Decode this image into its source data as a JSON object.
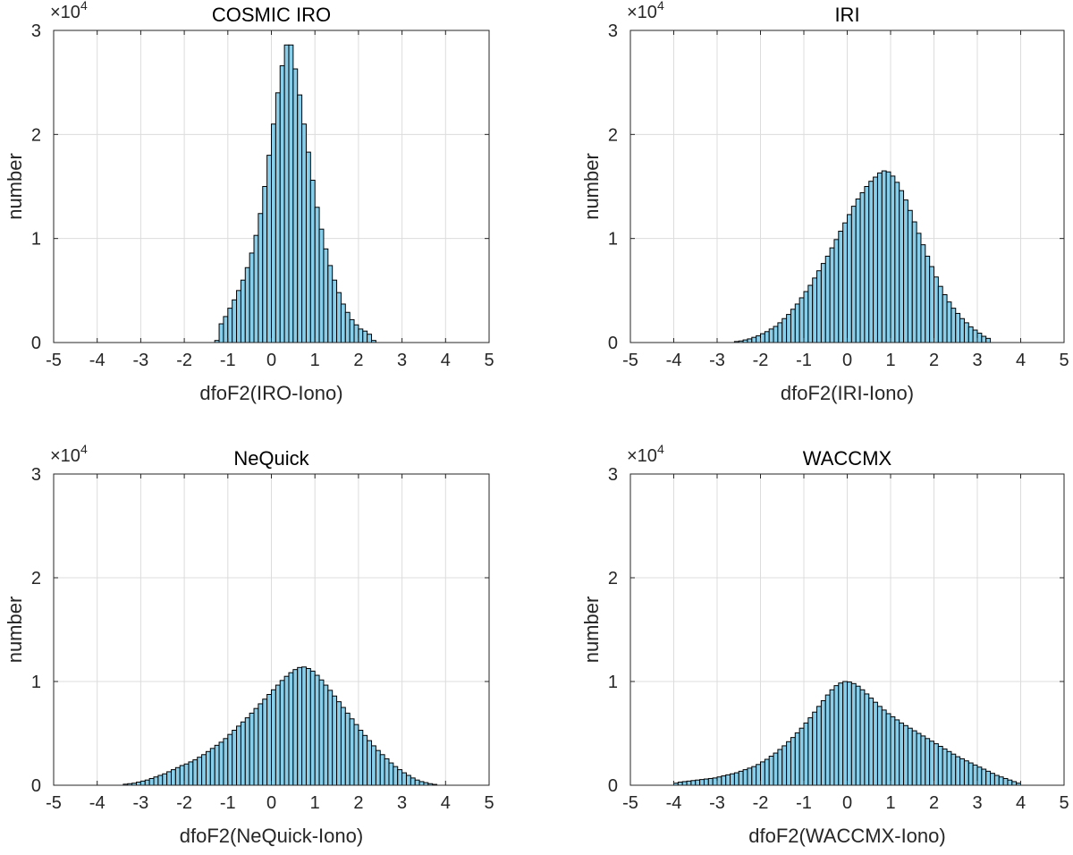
{
  "figure": {
    "bar_color": "#87CEEB",
    "edge_color": "#000000",
    "grid_color": "#DCDCDC"
  },
  "chart_data": [
    {
      "type": "bar",
      "title": "COSMIC IRO",
      "xlabel": "dfoF2(IRO-Iono)",
      "ylabel": "number",
      "xlim": [
        -5,
        5
      ],
      "ylim": [
        0,
        30000
      ],
      "xticks": [
        -5,
        -4,
        -3,
        -2,
        -1,
        0,
        1,
        2,
        3,
        4,
        5
      ],
      "yticks": [
        0,
        1,
        2,
        3
      ],
      "y_multiplier": "×10",
      "y_exponent": "4",
      "grid": true,
      "bin_width": 0.1,
      "x_start": -1.3,
      "values": [
        200,
        1800,
        2500,
        3300,
        4100,
        5000,
        6000,
        7200,
        8600,
        10300,
        12400,
        15000,
        18000,
        21000,
        24000,
        26600,
        28600,
        28600,
        26300,
        23800,
        21000,
        18300,
        15600,
        13000,
        10900,
        9000,
        7400,
        6000,
        4800,
        3700,
        2900,
        2200,
        1700,
        1300,
        1100,
        800,
        200
      ]
    },
    {
      "type": "bar",
      "title": "IRI",
      "xlabel": "dfoF2(IRI-Iono)",
      "ylabel": "number",
      "xlim": [
        -5,
        5
      ],
      "ylim": [
        0,
        30000
      ],
      "xticks": [
        -5,
        -4,
        -3,
        -2,
        -1,
        0,
        1,
        2,
        3,
        4,
        5
      ],
      "yticks": [
        0,
        1,
        2,
        3
      ],
      "y_multiplier": "×10",
      "y_exponent": "4",
      "grid": true,
      "bin_width": 0.1,
      "x_start": -2.6,
      "values": [
        100,
        150,
        250,
        350,
        500,
        650,
        850,
        1050,
        1300,
        1550,
        1900,
        2300,
        2700,
        3200,
        3700,
        4300,
        4900,
        5500,
        6200,
        6900,
        7600,
        8300,
        9100,
        9900,
        10700,
        11500,
        12300,
        13100,
        13800,
        14400,
        15000,
        15500,
        15900,
        16300,
        16500,
        16400,
        16000,
        15400,
        14600,
        13700,
        12700,
        11600,
        10500,
        9400,
        8300,
        7300,
        6300,
        5400,
        4600,
        3900,
        3300,
        2800,
        2300,
        1900,
        1500,
        1200,
        900,
        600,
        400
      ]
    },
    {
      "type": "bar",
      "title": "NeQuick",
      "xlabel": "dfoF2(NeQuick-Iono)",
      "ylabel": "number",
      "xlim": [
        -5,
        5
      ],
      "ylim": [
        0,
        30000
      ],
      "xticks": [
        -5,
        -4,
        -3,
        -2,
        -1,
        0,
        1,
        2,
        3,
        4,
        5
      ],
      "yticks": [
        0,
        1,
        2,
        3
      ],
      "y_multiplier": "×10",
      "y_exponent": "4",
      "grid": true,
      "bin_width": 0.1,
      "x_start": -3.4,
      "values": [
        100,
        150,
        200,
        300,
        400,
        500,
        650,
        800,
        950,
        1100,
        1300,
        1500,
        1700,
        1900,
        2050,
        2250,
        2450,
        2700,
        2950,
        3250,
        3550,
        3850,
        4150,
        4500,
        4900,
        5300,
        5700,
        6100,
        6500,
        6950,
        7400,
        7850,
        8300,
        8750,
        9200,
        9650,
        10100,
        10500,
        10850,
        11150,
        11350,
        11400,
        11250,
        11000,
        10600,
        10150,
        9650,
        9150,
        8600,
        8050,
        7500,
        6950,
        6400,
        5850,
        5300,
        4800,
        4300,
        3800,
        3350,
        2950,
        2550,
        2150,
        1800,
        1500,
        1200,
        950,
        700,
        500,
        350,
        250,
        150,
        80
      ]
    },
    {
      "type": "bar",
      "title": "WACCMX",
      "xlabel": "dfoF2(WACCMX-Iono)",
      "ylabel": "number",
      "xlim": [
        -5,
        5
      ],
      "ylim": [
        0,
        30000
      ],
      "xticks": [
        -5,
        -4,
        -3,
        -2,
        -1,
        0,
        1,
        2,
        3,
        4,
        5
      ],
      "yticks": [
        0,
        1,
        2,
        3
      ],
      "y_multiplier": "×10",
      "y_exponent": "4",
      "grid": true,
      "bin_width": 0.1,
      "x_start": -4.0,
      "values": [
        200,
        300,
        350,
        400,
        450,
        500,
        550,
        600,
        650,
        700,
        800,
        900,
        1000,
        1100,
        1200,
        1350,
        1500,
        1650,
        1800,
        2000,
        2250,
        2500,
        2800,
        3100,
        3450,
        3800,
        4200,
        4600,
        5050,
        5500,
        6000,
        6500,
        7050,
        7600,
        8150,
        8700,
        9200,
        9600,
        9850,
        10000,
        9950,
        9800,
        9550,
        9200,
        8800,
        8400,
        8000,
        7600,
        7250,
        6900,
        6600,
        6300,
        6000,
        5750,
        5500,
        5250,
        5000,
        4750,
        4500,
        4250,
        4000,
        3750,
        3500,
        3250,
        3000,
        2750,
        2550,
        2350,
        2150,
        1950,
        1750,
        1550,
        1350,
        1150,
        950,
        800,
        650,
        500,
        350,
        200
      ]
    }
  ]
}
